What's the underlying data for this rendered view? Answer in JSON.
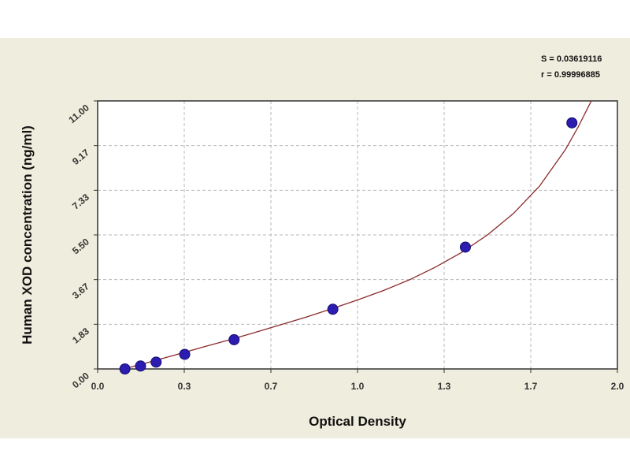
{
  "chart_data": {
    "type": "scatter",
    "title": "",
    "xlabel": "Optical Density",
    "ylabel": "Human XOD concentration (ng/ml)",
    "xlim": [
      0,
      2.0
    ],
    "ylim": [
      0,
      11.0
    ],
    "x_ticks": [
      "0.0",
      "0.3",
      "0.7",
      "1.0",
      "1.3",
      "1.7",
      "2.0"
    ],
    "y_ticks": [
      "0.00",
      "1.83",
      "3.67",
      "5.50",
      "7.33",
      "9.17",
      "11.00"
    ],
    "grid": true,
    "series": [
      {
        "points": [
          {
            "x": 0.105,
            "y": 0.0
          },
          {
            "x": 0.165,
            "y": 0.12
          },
          {
            "x": 0.225,
            "y": 0.28
          },
          {
            "x": 0.335,
            "y": 0.6
          },
          {
            "x": 0.525,
            "y": 1.2
          },
          {
            "x": 0.905,
            "y": 2.45
          },
          {
            "x": 1.415,
            "y": 5.0
          },
          {
            "x": 1.825,
            "y": 10.1
          }
        ]
      }
    ],
    "fit_curve": [
      [
        0.1,
        0.0
      ],
      [
        0.2,
        0.28
      ],
      [
        0.3,
        0.58
      ],
      [
        0.4,
        0.88
      ],
      [
        0.5,
        1.17
      ],
      [
        0.6,
        1.48
      ],
      [
        0.7,
        1.8
      ],
      [
        0.8,
        2.12
      ],
      [
        0.9,
        2.47
      ],
      [
        1.0,
        2.83
      ],
      [
        1.1,
        3.22
      ],
      [
        1.2,
        3.66
      ],
      [
        1.3,
        4.18
      ],
      [
        1.4,
        4.78
      ],
      [
        1.5,
        5.5
      ],
      [
        1.6,
        6.38
      ],
      [
        1.7,
        7.5
      ],
      [
        1.8,
        9.0
      ],
      [
        1.85,
        9.95
      ],
      [
        1.89,
        10.8
      ],
      [
        1.9,
        11.0
      ]
    ],
    "stats": {
      "s": "S = 0.03619116",
      "r": "r = 0.99996885"
    },
    "colors": {
      "background": "#efeddd",
      "plot_background": "#ffffff",
      "grid": "#b8b8b8",
      "curve": "#8b2a2a",
      "points": "#2c1cb0"
    }
  }
}
